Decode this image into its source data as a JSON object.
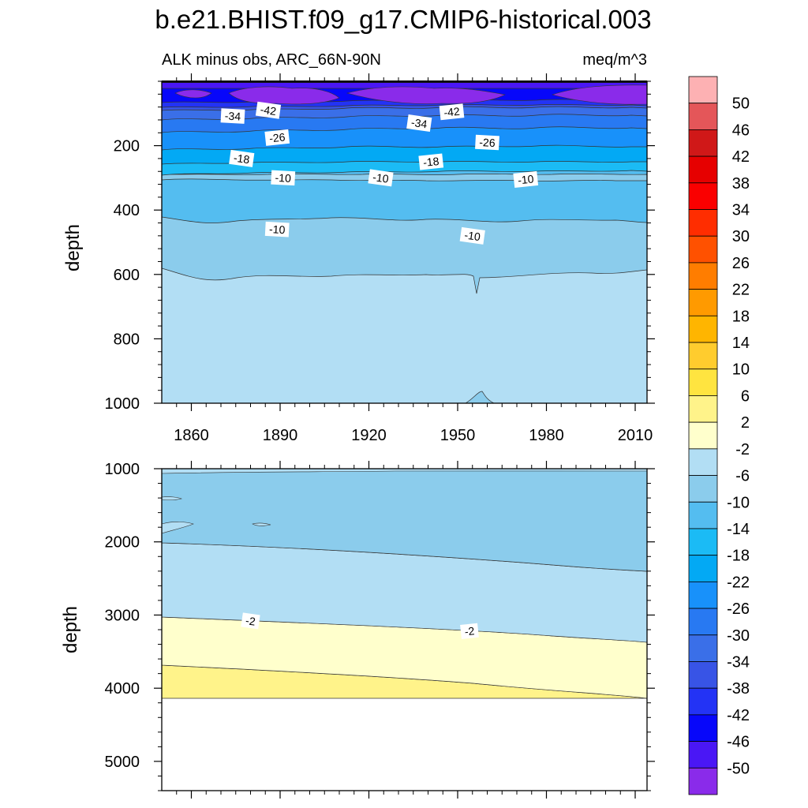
{
  "title": "b.e21.BHIST.f09_g17.CMIP6-historical.003",
  "subtitle_left": "ALK minus obs, ARC_66N-90N",
  "subtitle_right": "meq/m^3",
  "chart_data": {
    "type": "heatmap",
    "variable": "ALK minus obs",
    "region": "ARC_66N-90N",
    "units": "meq/m^3",
    "xlabel": "",
    "ylabel": "depth",
    "x_range": [
      1850,
      2014
    ],
    "x_tick_labels": [
      "1860",
      "1890",
      "1920",
      "1950",
      "1980",
      "2010"
    ],
    "x_ticks": [
      1860,
      1890,
      1920,
      1950,
      1980,
      2010
    ],
    "panels": [
      {
        "name": "upper",
        "ylim": [
          0,
          1000
        ],
        "y_inverted": true,
        "y_ticks": [
          200,
          400,
          600,
          800,
          1000
        ],
        "y_tick_labels": [
          "200",
          "400",
          "600",
          "800",
          "1000"
        ],
        "contour_labels": [
          {
            "text": "-42",
            "x": 1886,
            "y": 90
          },
          {
            "text": "-42",
            "x": 1948,
            "y": 95
          },
          {
            "text": "-34",
            "x": 1874,
            "y": 108
          },
          {
            "text": "-34",
            "x": 1937,
            "y": 130
          },
          {
            "text": "-26",
            "x": 1889,
            "y": 175
          },
          {
            "text": "-26",
            "x": 1960,
            "y": 190
          },
          {
            "text": "-18",
            "x": 1877,
            "y": 240
          },
          {
            "text": "-18",
            "x": 1941,
            "y": 250
          },
          {
            "text": "-10",
            "x": 1891,
            "y": 300
          },
          {
            "text": "-10",
            "x": 1924,
            "y": 300
          },
          {
            "text": "-10",
            "x": 1973,
            "y": 305
          },
          {
            "text": "-10",
            "x": 1889,
            "y": 460
          },
          {
            "text": "-10",
            "x": 1955,
            "y": 480
          }
        ]
      },
      {
        "name": "lower",
        "ylim": [
          1000,
          5400
        ],
        "y_inverted": true,
        "y_ticks": [
          1000,
          2000,
          3000,
          4000,
          5000
        ],
        "y_tick_labels": [
          "1000",
          "2000",
          "3000",
          "4000",
          "5000"
        ],
        "contour_labels": [
          {
            "text": "-2",
            "x": 1880,
            "y": 3080
          },
          {
            "text": "-2",
            "x": 1954,
            "y": 3220
          }
        ]
      }
    ],
    "colorbar": {
      "orientation": "vertical",
      "labels": [
        "50",
        "46",
        "42",
        "38",
        "34",
        "30",
        "26",
        "22",
        "18",
        "14",
        "10",
        "6",
        "2",
        "-2",
        "-6",
        "-10",
        "-14",
        "-18",
        "-22",
        "-26",
        "-30",
        "-34",
        "-38",
        "-42",
        "-46",
        "-50"
      ],
      "colors": [
        "#FDB1B3",
        "#E45659",
        "#D01818",
        "#E60000",
        "#FA0000",
        "#FF2D00",
        "#FF5100",
        "#FF7D00",
        "#FF9A00",
        "#FFB500",
        "#FFCC2E",
        "#FFE440",
        "#FFF38A",
        "#FFFFCC",
        "#B2DEF4",
        "#8BCCEC",
        "#54BDF0",
        "#1BBBF5",
        "#03A9F4",
        "#1891FA",
        "#2879F2",
        "#3A6FE8",
        "#3854E6",
        "#2333F5",
        "#0707FA",
        "#4A17F5",
        "#8A2BEA"
      ]
    }
  }
}
